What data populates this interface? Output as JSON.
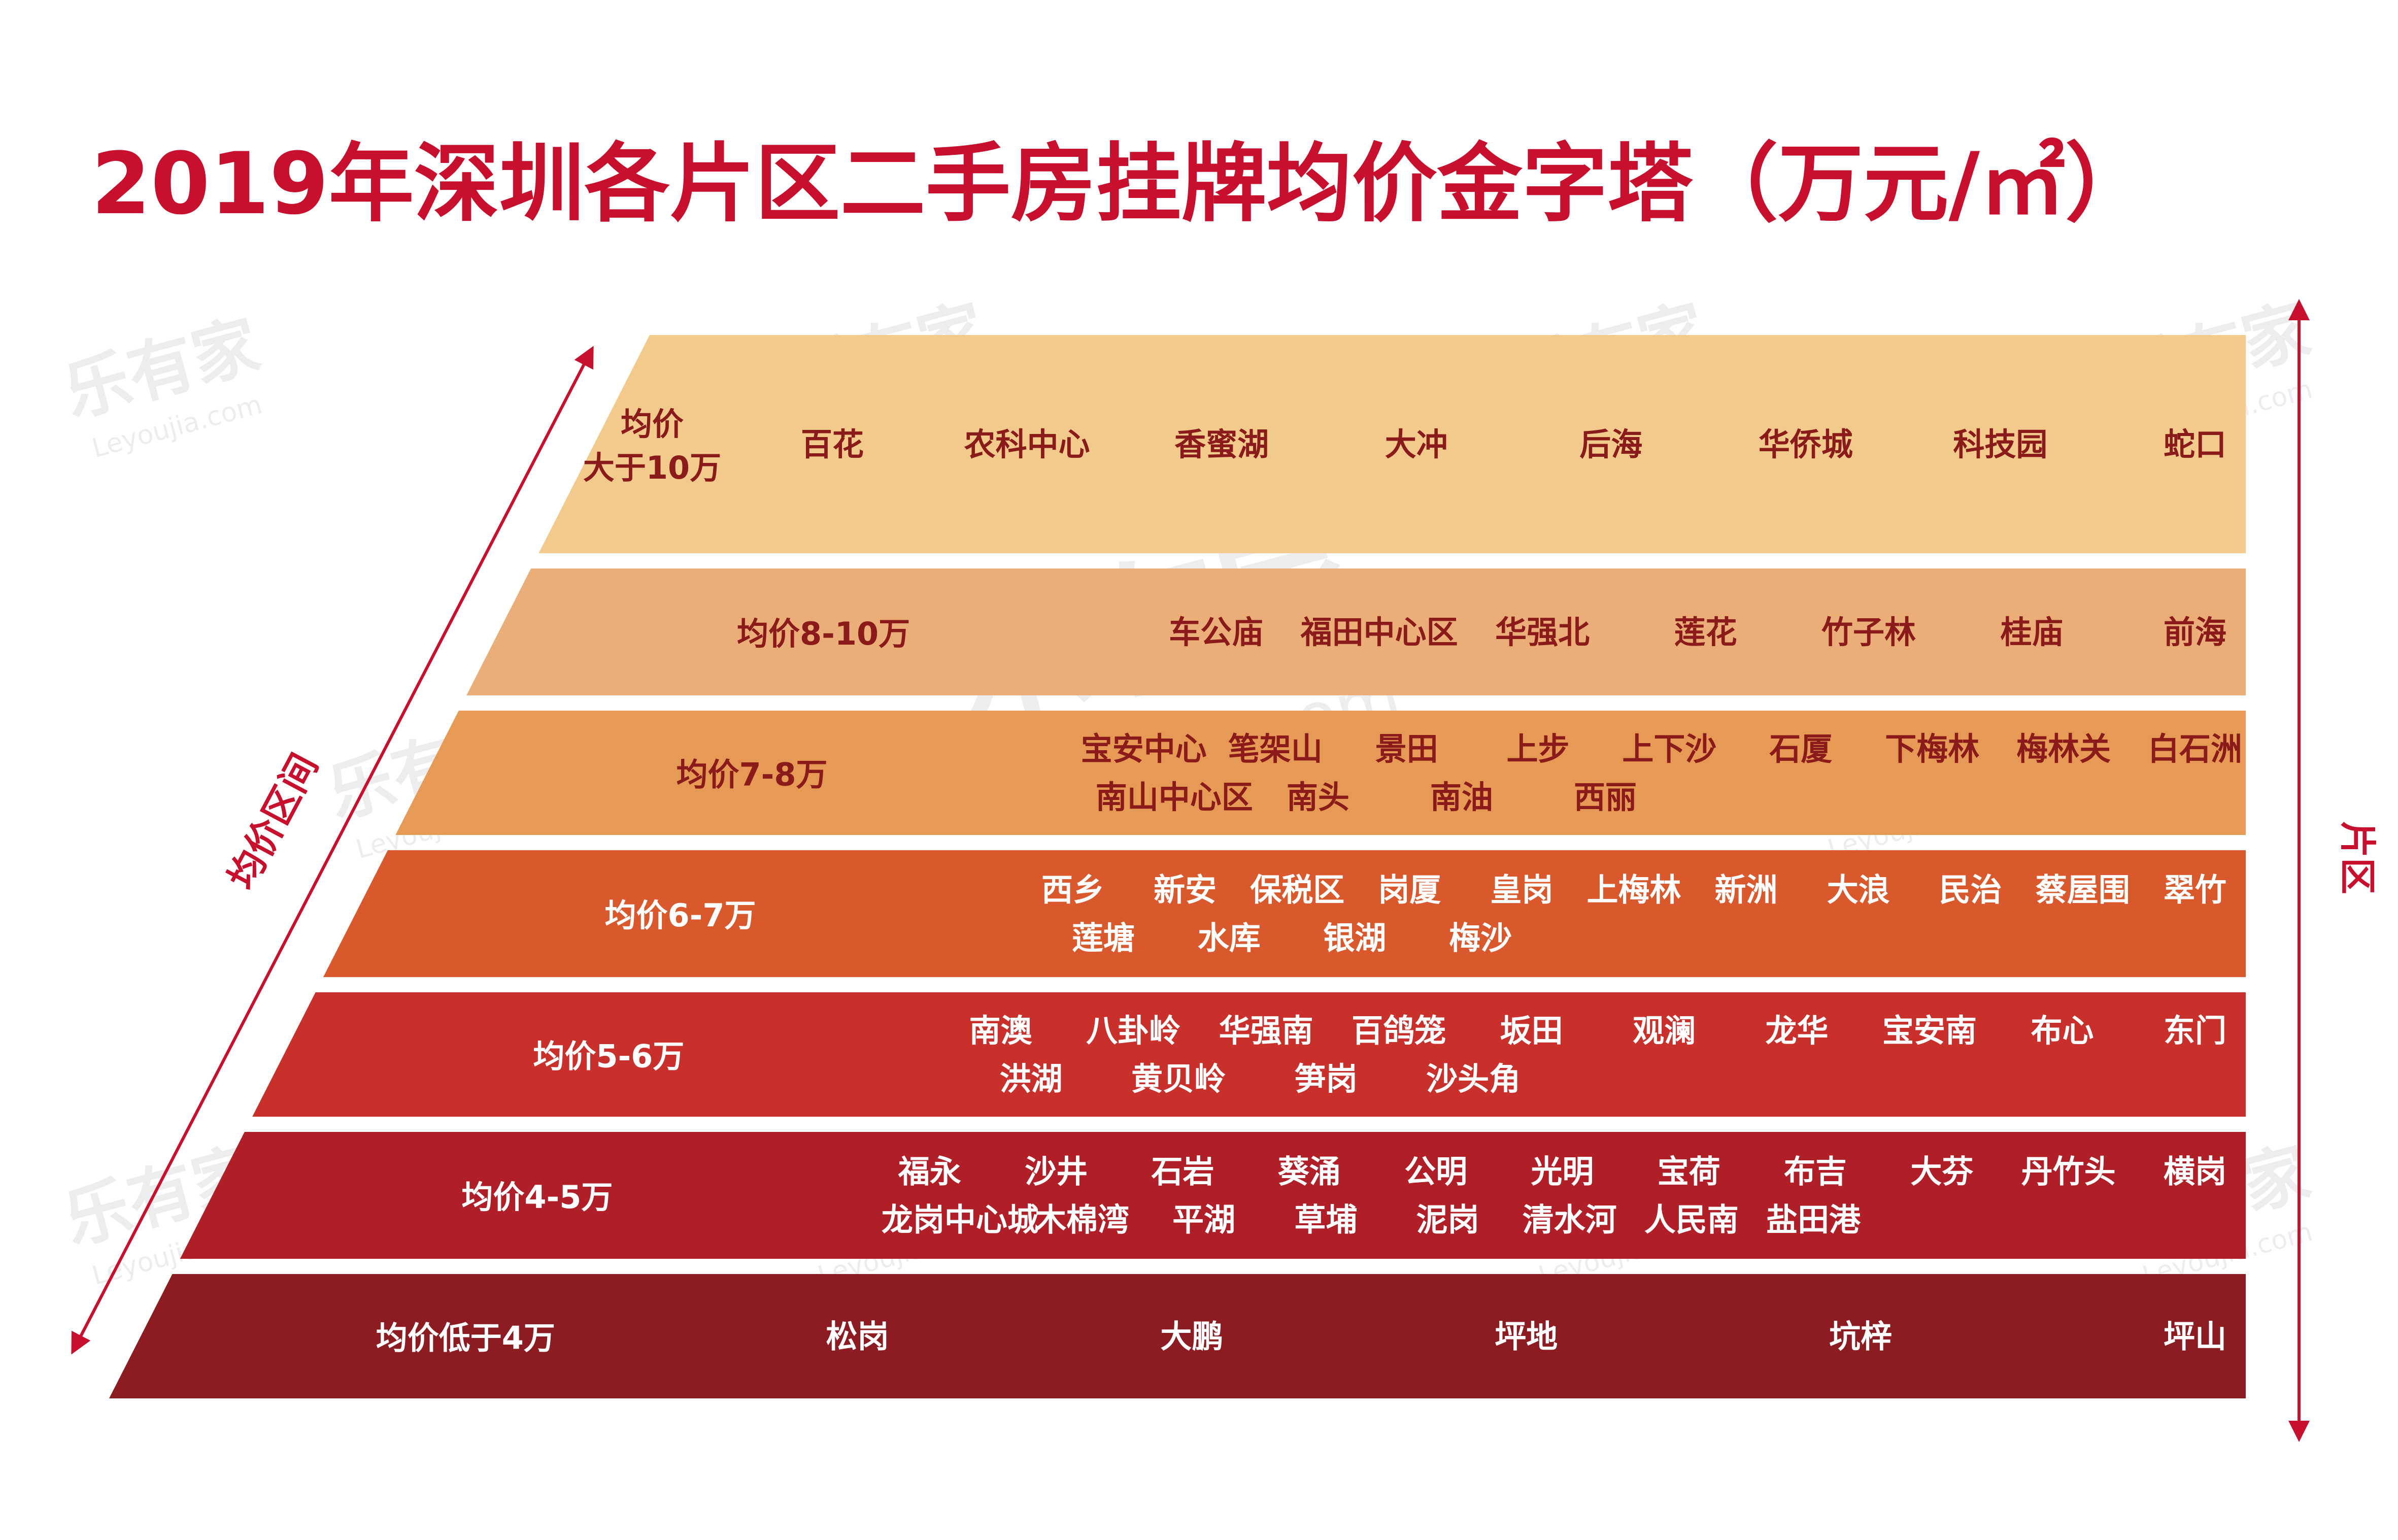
{
  "title": "2019年深圳各片区二手房挂牌均价金字塔（万元/㎡）",
  "left_axis_label": "均价区间",
  "right_axis_label": "片区",
  "watermark": {
    "cn": "乐有家",
    "en": "Leyoujia.com"
  },
  "colors": {
    "title": "#c8102e",
    "arrow": "#c8102e",
    "tiers": [
      "#f2cb8c",
      "#ebae78",
      "#e69a55",
      "#d9582c",
      "#c9302c",
      "#b01f27",
      "#8c1c22"
    ],
    "tier_text": [
      "#8b1a1a",
      "#8b1a1a",
      "#8b1a1a",
      "#ffffff",
      "#ffffff",
      "#ffffff",
      "#ffffff"
    ]
  },
  "tiers": [
    {
      "label_lines": [
        "均价",
        "大于10万"
      ],
      "areas": [
        [
          "百花",
          "农科中心",
          "香蜜湖",
          "大冲",
          "后海",
          "华侨城",
          "科技园",
          "蛇口"
        ]
      ]
    },
    {
      "label_lines": [
        "均价8-10万"
      ],
      "areas": [
        [
          "车公庙",
          "福田中心区",
          "华强北",
          "莲花",
          "竹子林",
          "桂庙",
          "前海"
        ]
      ]
    },
    {
      "label_lines": [
        "均价7-8万"
      ],
      "areas": [
        [
          "宝安中心",
          "笔架山",
          "景田",
          "上步",
          "上下沙",
          "石厦",
          "下梅林",
          "梅林关",
          "白石洲"
        ],
        [
          "南山中心区",
          "南头",
          "南油",
          "西丽"
        ]
      ]
    },
    {
      "label_lines": [
        "均价6-7万"
      ],
      "areas": [
        [
          "西乡",
          "新安",
          "保税区",
          "岗厦",
          "皇岗",
          "上梅林",
          "新洲",
          "大浪",
          "民治",
          "蔡屋围",
          "翠竹"
        ],
        [
          "莲塘",
          "水库",
          "银湖",
          "梅沙"
        ]
      ]
    },
    {
      "label_lines": [
        "均价5-6万"
      ],
      "areas": [
        [
          "南澳",
          "八卦岭",
          "华强南",
          "百鸽笼",
          "坂田",
          "观澜",
          "龙华",
          "宝安南",
          "布心",
          "东门"
        ],
        [
          "洪湖",
          "黄贝岭",
          "笋岗",
          "沙头角"
        ]
      ]
    },
    {
      "label_lines": [
        "均价4-5万"
      ],
      "areas": [
        [
          "福永",
          "沙井",
          "石岩",
          "葵涌",
          "公明",
          "光明",
          "宝荷",
          "布吉",
          "大芬",
          "丹竹头",
          "横岗"
        ],
        [
          "龙岗中心城",
          "木棉湾",
          "平湖",
          "草埔",
          "泥岗",
          "清水河",
          "人民南",
          "盐田港"
        ]
      ]
    },
    {
      "label_lines": [
        "均价低于4万"
      ],
      "areas": [
        [
          "松岗",
          "大鹏",
          "坪地",
          "坑梓",
          "坪山"
        ]
      ]
    }
  ]
}
